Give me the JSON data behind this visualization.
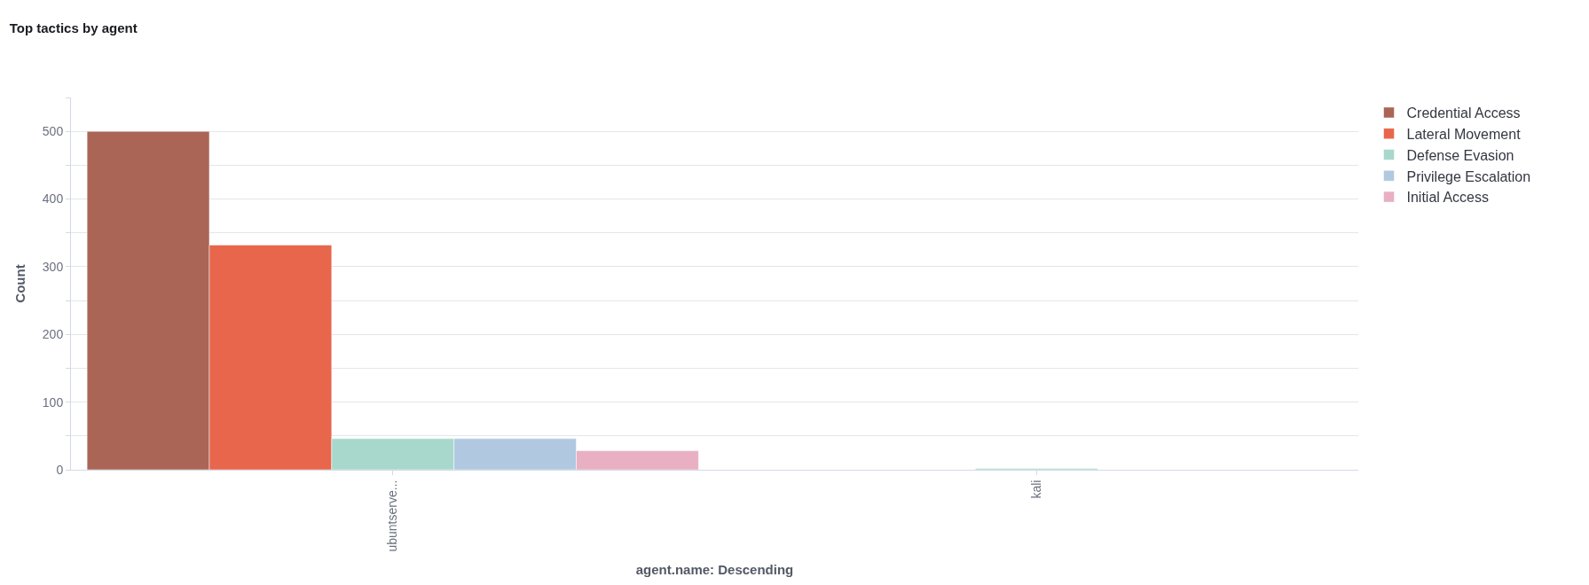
{
  "chart_data": {
    "type": "bar",
    "title": "Top tactics by agent",
    "xlabel": "agent.name: Descending",
    "ylabel": "Count",
    "categories": [
      "ubuntserve...",
      "kali"
    ],
    "series": [
      {
        "name": "Credential Access",
        "color": "#aa6556",
        "values": [
          500,
          null
        ]
      },
      {
        "name": "Lateral Movement",
        "color": "#e7664c",
        "values": [
          332,
          null
        ]
      },
      {
        "name": "Defense Evasion",
        "color": "#a8d8cb",
        "values": [
          46,
          2
        ]
      },
      {
        "name": "Privilege Escalation",
        "color": "#b0c9e0",
        "values": [
          46,
          null
        ]
      },
      {
        "name": "Initial Access",
        "color": "#e8b0c2",
        "values": [
          28,
          null
        ]
      }
    ],
    "ylim": [
      0,
      550
    ],
    "yticks": [
      0,
      {
        "value": 50,
        "label": null
      },
      100,
      {
        "value": 150,
        "label": null
      },
      200,
      {
        "value": 250,
        "label": null
      },
      300,
      {
        "value": 350,
        "label": null
      },
      400,
      {
        "value": 450,
        "label": null
      },
      500,
      {
        "value": 550,
        "label": null
      }
    ],
    "grid": "y",
    "legend": "top right"
  }
}
